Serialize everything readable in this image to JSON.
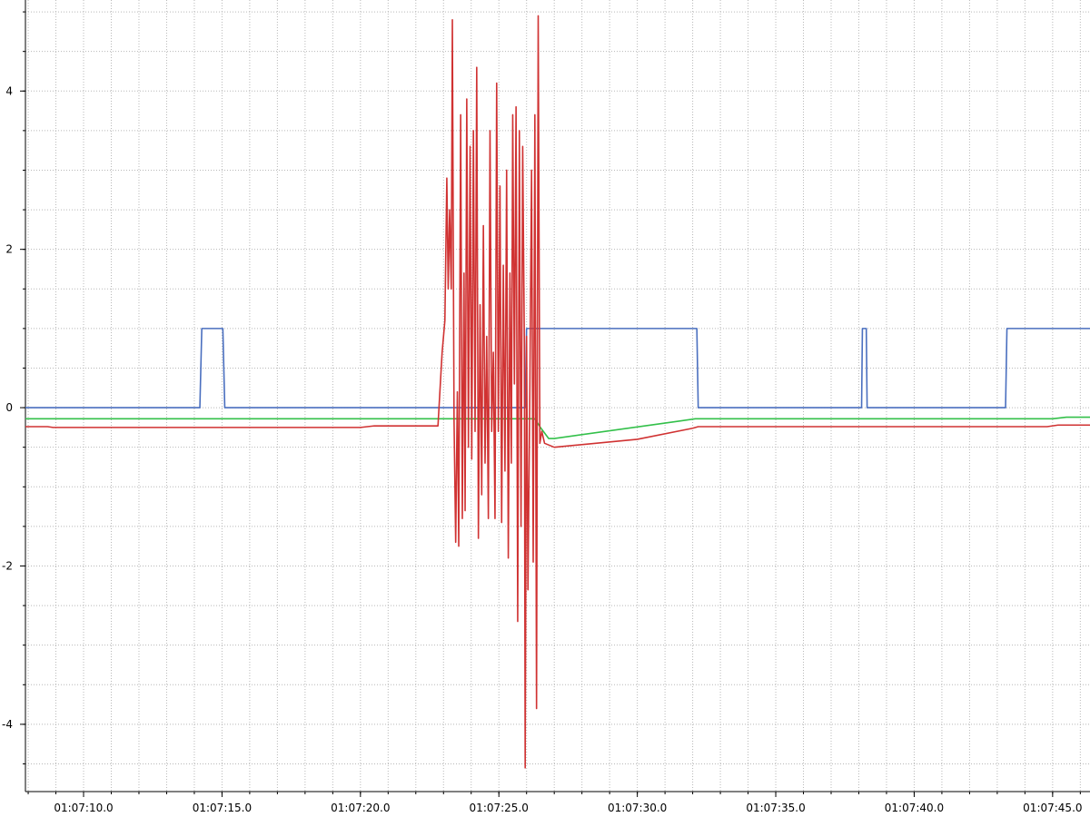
{
  "chart_data": {
    "type": "line",
    "title": "",
    "xlabel": "",
    "ylabel": "",
    "x_unit": "seconds",
    "xlim": [
      7.9,
      46.35
    ],
    "ylim": [
      -4.85,
      5.15
    ],
    "grid": true,
    "legend": "none",
    "x_ticks": [
      {
        "value": 10,
        "label": "01:07:10.0"
      },
      {
        "value": 15,
        "label": "01:07:15.0"
      },
      {
        "value": 20,
        "label": "01:07:20.0"
      },
      {
        "value": 25,
        "label": "01:07:25.0"
      },
      {
        "value": 30,
        "label": "01:07:30.0"
      },
      {
        "value": 35,
        "label": "01:07:35.0"
      },
      {
        "value": 40,
        "label": "01:07:40.0"
      },
      {
        "value": 45,
        "label": "01:07:45.0"
      }
    ],
    "y_ticks": [
      {
        "value": -4,
        "label": "-4"
      },
      {
        "value": -2,
        "label": "-2"
      },
      {
        "value": 0,
        "label": "0"
      },
      {
        "value": 2,
        "label": "2"
      },
      {
        "value": 4,
        "label": "4"
      }
    ],
    "series": [
      {
        "color": "#4a6fbf",
        "points": [
          [
            7.9,
            0
          ],
          [
            14.2,
            0
          ],
          [
            14.27,
            1
          ],
          [
            15.03,
            1
          ],
          [
            15.1,
            0
          ],
          [
            25.95,
            0
          ],
          [
            26.0,
            1
          ],
          [
            32.15,
            1
          ],
          [
            32.2,
            0
          ],
          [
            38.1,
            0
          ],
          [
            38.13,
            1
          ],
          [
            38.27,
            1
          ],
          [
            38.3,
            0
          ],
          [
            43.3,
            0
          ],
          [
            43.35,
            1
          ],
          [
            46.35,
            1
          ]
        ]
      },
      {
        "color": "#33c04a",
        "points": [
          [
            7.9,
            -0.14
          ],
          [
            22.8,
            -0.14
          ],
          [
            26.3,
            -0.14
          ],
          [
            26.5,
            -0.25
          ],
          [
            26.8,
            -0.39
          ],
          [
            27.0,
            -0.39
          ],
          [
            31.5,
            -0.17
          ],
          [
            32.1,
            -0.14
          ],
          [
            45.0,
            -0.14
          ],
          [
            45.5,
            -0.12
          ],
          [
            46.35,
            -0.12
          ]
        ]
      },
      {
        "color": "#d03232",
        "points": [
          [
            7.9,
            -0.24
          ],
          [
            8.7,
            -0.24
          ],
          [
            8.9,
            -0.25
          ],
          [
            20.0,
            -0.25
          ],
          [
            20.5,
            -0.23
          ],
          [
            22.8,
            -0.23
          ],
          [
            22.95,
            0.7
          ],
          [
            23.05,
            1.1
          ],
          [
            23.12,
            2.9
          ],
          [
            23.17,
            1.5
          ],
          [
            23.22,
            2.5
          ],
          [
            23.28,
            1.5
          ],
          [
            23.32,
            4.9
          ],
          [
            23.38,
            -0.15
          ],
          [
            23.44,
            -1.7
          ],
          [
            23.5,
            0.2
          ],
          [
            23.55,
            -1.75
          ],
          [
            23.62,
            3.7
          ],
          [
            23.68,
            -1.4
          ],
          [
            23.74,
            1.7
          ],
          [
            23.78,
            -1.3
          ],
          [
            23.84,
            3.9
          ],
          [
            23.9,
            -0.5
          ],
          [
            23.96,
            3.3
          ],
          [
            24.02,
            -0.65
          ],
          [
            24.08,
            3.5
          ],
          [
            24.14,
            -0.3
          ],
          [
            24.2,
            4.3
          ],
          [
            24.26,
            -1.65
          ],
          [
            24.32,
            1.3
          ],
          [
            24.38,
            -1.1
          ],
          [
            24.44,
            2.3
          ],
          [
            24.5,
            -0.7
          ],
          [
            24.56,
            0.9
          ],
          [
            24.62,
            -1.4
          ],
          [
            24.68,
            3.5
          ],
          [
            24.74,
            -0.3
          ],
          [
            24.8,
            0.7
          ],
          [
            24.86,
            -1.4
          ],
          [
            24.92,
            4.1
          ],
          [
            24.98,
            -0.3
          ],
          [
            25.04,
            2.8
          ],
          [
            25.1,
            -1.45
          ],
          [
            25.16,
            1.8
          ],
          [
            25.22,
            -0.8
          ],
          [
            25.28,
            3.0
          ],
          [
            25.34,
            -1.9
          ],
          [
            25.4,
            1.7
          ],
          [
            25.45,
            -0.7
          ],
          [
            25.5,
            3.7
          ],
          [
            25.56,
            0.3
          ],
          [
            25.62,
            3.8
          ],
          [
            25.68,
            -2.7
          ],
          [
            25.74,
            3.5
          ],
          [
            25.8,
            -1.5
          ],
          [
            25.86,
            3.3
          ],
          [
            25.92,
            0.8
          ],
          [
            25.95,
            -4.55
          ],
          [
            26.0,
            0.9
          ],
          [
            26.05,
            -2.3
          ],
          [
            26.12,
            0.3
          ],
          [
            26.18,
            3.0
          ],
          [
            26.24,
            -1.95
          ],
          [
            26.3,
            3.7
          ],
          [
            26.36,
            -3.8
          ],
          [
            26.42,
            4.95
          ],
          [
            26.48,
            -0.45
          ],
          [
            26.55,
            -0.3
          ],
          [
            26.65,
            -0.45
          ],
          [
            27.0,
            -0.5
          ],
          [
            30.0,
            -0.4
          ],
          [
            32.0,
            -0.26
          ],
          [
            32.2,
            -0.24
          ],
          [
            44.8,
            -0.24
          ],
          [
            45.2,
            -0.22
          ],
          [
            46.35,
            -0.22
          ]
        ]
      }
    ]
  }
}
